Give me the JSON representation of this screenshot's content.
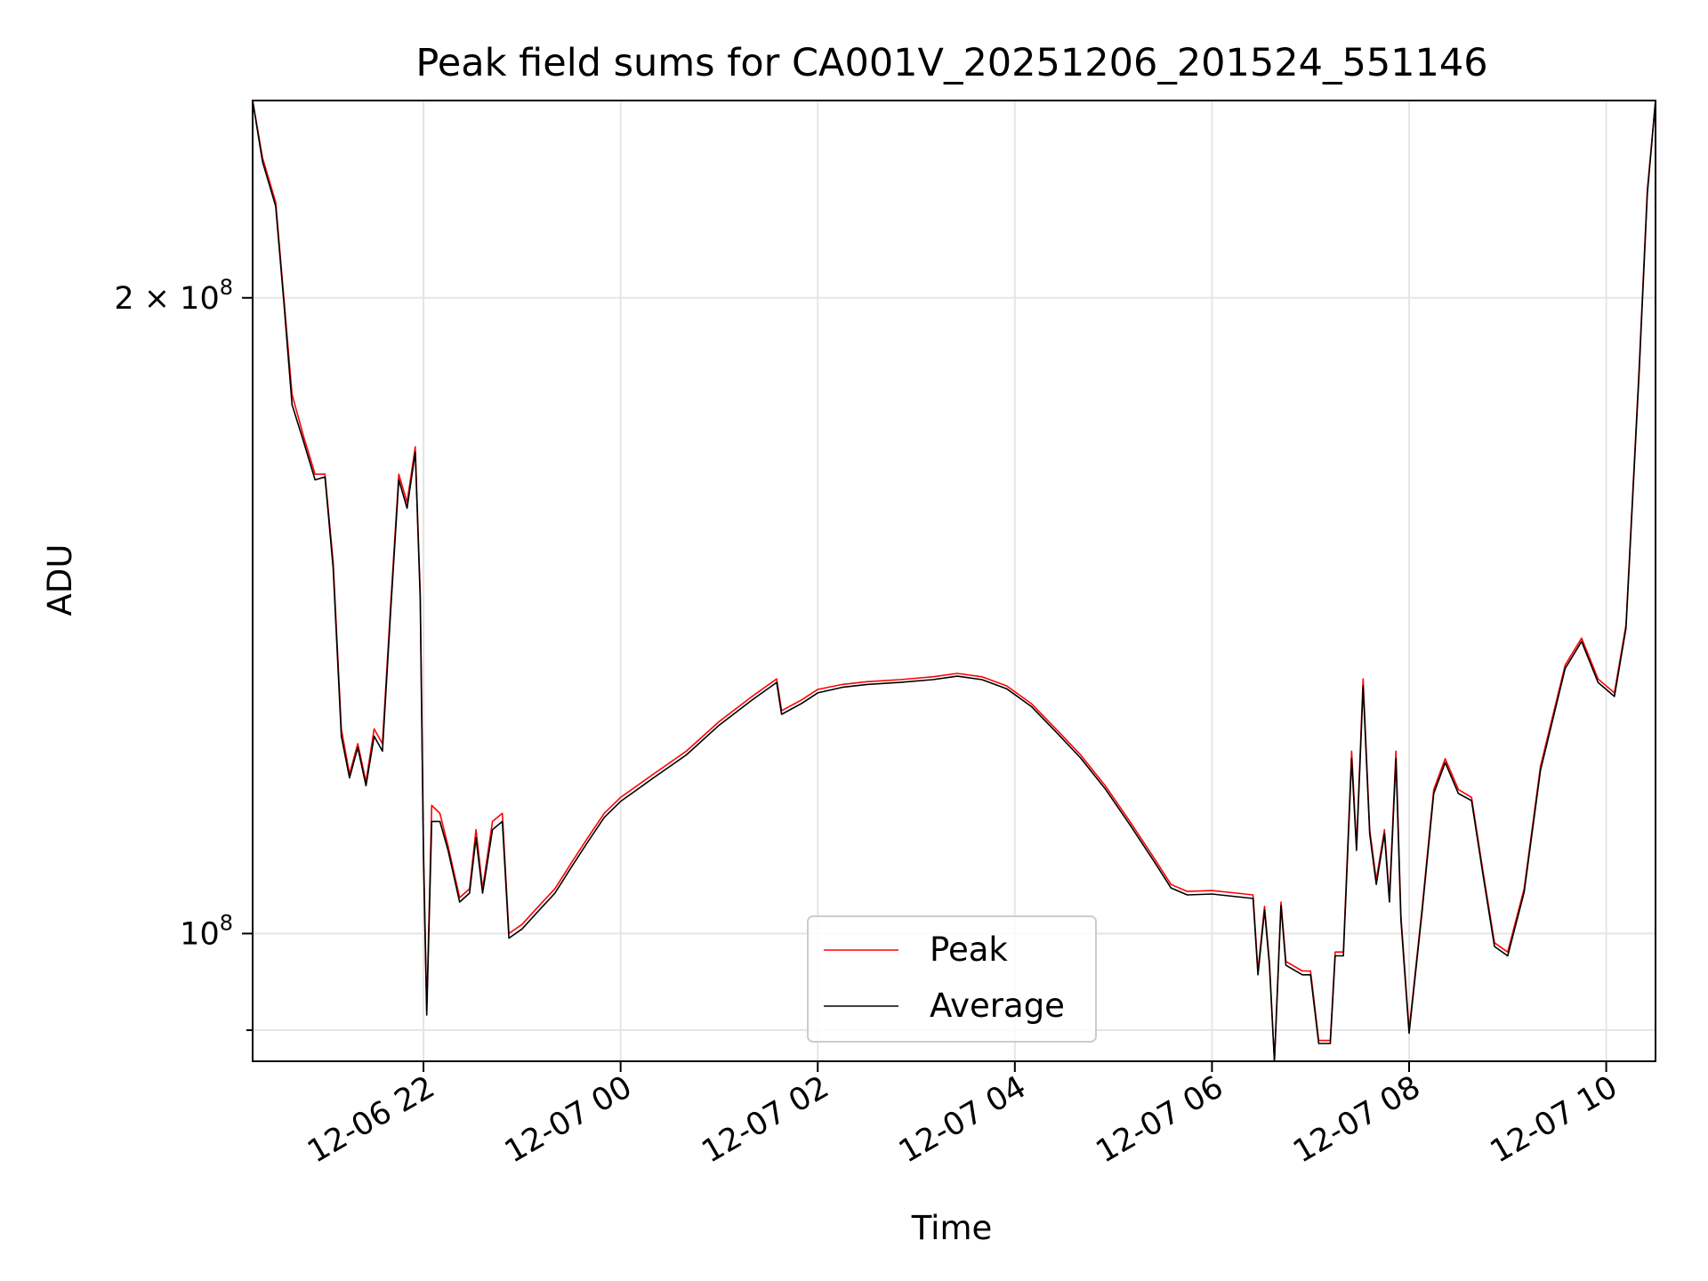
{
  "chart_data": {
    "type": "line",
    "title": "Peak field sums for CA001V_20251206_201524_551146",
    "xlabel": "Time",
    "ylabel": "ADU",
    "y_scale": "log",
    "ylim": [
      87000000,
      248000000
    ],
    "xlim": [
      "2025-12-06 20:16",
      "2025-12-07 10:30"
    ],
    "grid": true,
    "legend_position": "lower-center",
    "x_ticks": [
      {
        "value": "2025-12-06 22:00",
        "label": "12-06 22"
      },
      {
        "value": "2025-12-07 00:00",
        "label": "12-07 00"
      },
      {
        "value": "2025-12-07 02:00",
        "label": "12-07 02"
      },
      {
        "value": "2025-12-07 04:00",
        "label": "12-07 04"
      },
      {
        "value": "2025-12-07 06:00",
        "label": "12-07 06"
      },
      {
        "value": "2025-12-07 08:00",
        "label": "12-07 08"
      },
      {
        "value": "2025-12-07 10:00",
        "label": "12-07 10"
      }
    ],
    "y_ticks": [
      {
        "value": 100000000,
        "label": "10",
        "exp": "8"
      },
      {
        "value": 200000000,
        "label": "2 × 10",
        "exp": "8"
      }
    ],
    "y_minor_ticks": [
      90000000
    ],
    "series": [
      {
        "name": "Peak",
        "color": "#ff0000",
        "points": [
          [
            "2025-12-06 20:16",
            248000000
          ],
          [
            "2025-12-06 20:22",
            233000000
          ],
          [
            "2025-12-06 20:30",
            222000000
          ],
          [
            "2025-12-06 20:35",
            200000000
          ],
          [
            "2025-12-06 20:40",
            180000000
          ],
          [
            "2025-12-06 20:47",
            172000000
          ],
          [
            "2025-12-06 20:54",
            165000000
          ],
          [
            "2025-12-06 21:00",
            165000000
          ],
          [
            "2025-12-06 21:05",
            150000000
          ],
          [
            "2025-12-06 21:10",
            125000000
          ],
          [
            "2025-12-06 21:15",
            119000000
          ],
          [
            "2025-12-06 21:20",
            123000000
          ],
          [
            "2025-12-06 21:25",
            118000000
          ],
          [
            "2025-12-06 21:30",
            125000000
          ],
          [
            "2025-12-06 21:35",
            123000000
          ],
          [
            "2025-12-06 21:40",
            143000000
          ],
          [
            "2025-12-06 21:45",
            165000000
          ],
          [
            "2025-12-06 21:50",
            160000000
          ],
          [
            "2025-12-06 21:55",
            170000000
          ],
          [
            "2025-12-06 21:58",
            145000000
          ],
          [
            "2025-12-06 22:00",
            110000000
          ],
          [
            "2025-12-06 22:02",
            92000000
          ],
          [
            "2025-12-06 22:05",
            115000000
          ],
          [
            "2025-12-06 22:10",
            114000000
          ],
          [
            "2025-12-06 22:15",
            110000000
          ],
          [
            "2025-12-06 22:22",
            104000000
          ],
          [
            "2025-12-06 22:28",
            105000000
          ],
          [
            "2025-12-06 22:32",
            112000000
          ],
          [
            "2025-12-06 22:36",
            105000000
          ],
          [
            "2025-12-06 22:42",
            113000000
          ],
          [
            "2025-12-06 22:48",
            114000000
          ],
          [
            "2025-12-06 22:52",
            100000000
          ],
          [
            "2025-12-06 23:00",
            101000000
          ],
          [
            "2025-12-06 23:10",
            103000000
          ],
          [
            "2025-12-06 23:20",
            105000000
          ],
          [
            "2025-12-06 23:30",
            108000000
          ],
          [
            "2025-12-06 23:40",
            111000000
          ],
          [
            "2025-12-06 23:50",
            114000000
          ],
          [
            "2025-12-07 00:00",
            116000000
          ],
          [
            "2025-12-07 00:20",
            119000000
          ],
          [
            "2025-12-07 00:40",
            122000000
          ],
          [
            "2025-12-07 01:00",
            126000000
          ],
          [
            "2025-12-07 01:20",
            129500000
          ],
          [
            "2025-12-07 01:35",
            132000000
          ],
          [
            "2025-12-07 01:38",
            127500000
          ],
          [
            "2025-12-07 01:50",
            129000000
          ],
          [
            "2025-12-07 02:00",
            130500000
          ],
          [
            "2025-12-07 02:15",
            131200000
          ],
          [
            "2025-12-07 02:30",
            131600000
          ],
          [
            "2025-12-07 02:50",
            131900000
          ],
          [
            "2025-12-07 03:10",
            132300000
          ],
          [
            "2025-12-07 03:25",
            132800000
          ],
          [
            "2025-12-07 03:40",
            132300000
          ],
          [
            "2025-12-07 03:55",
            131000000
          ],
          [
            "2025-12-07 04:10",
            128500000
          ],
          [
            "2025-12-07 04:25",
            125000000
          ],
          [
            "2025-12-07 04:40",
            121500000
          ],
          [
            "2025-12-07 04:55",
            117500000
          ],
          [
            "2025-12-07 05:10",
            113000000
          ],
          [
            "2025-12-07 05:25",
            108500000
          ],
          [
            "2025-12-07 05:35",
            105500000
          ],
          [
            "2025-12-07 05:45",
            104700000
          ],
          [
            "2025-12-07 06:00",
            104800000
          ],
          [
            "2025-12-07 06:15",
            104500000
          ],
          [
            "2025-12-07 06:25",
            104300000
          ],
          [
            "2025-12-07 06:28",
            96000000
          ],
          [
            "2025-12-07 06:32",
            103000000
          ],
          [
            "2025-12-07 06:35",
            97000000
          ],
          [
            "2025-12-07 06:38",
            87000000
          ],
          [
            "2025-12-07 06:42",
            103500000
          ],
          [
            "2025-12-07 06:45",
            97000000
          ],
          [
            "2025-12-07 06:55",
            96000000
          ],
          [
            "2025-12-07 07:00",
            96000000
          ],
          [
            "2025-12-07 07:05",
            89000000
          ],
          [
            "2025-12-07 07:12",
            89000000
          ],
          [
            "2025-12-07 07:15",
            98000000
          ],
          [
            "2025-12-07 07:20",
            98000000
          ],
          [
            "2025-12-07 07:25",
            122000000
          ],
          [
            "2025-12-07 07:28",
            110000000
          ],
          [
            "2025-12-07 07:32",
            132000000
          ],
          [
            "2025-12-07 07:36",
            112000000
          ],
          [
            "2025-12-07 07:40",
            106000000
          ],
          [
            "2025-12-07 07:45",
            112000000
          ],
          [
            "2025-12-07 07:48",
            104000000
          ],
          [
            "2025-12-07 07:52",
            122000000
          ],
          [
            "2025-12-07 07:55",
            102000000
          ],
          [
            "2025-12-07 08:00",
            90000000
          ],
          [
            "2025-12-07 08:08",
            103000000
          ],
          [
            "2025-12-07 08:15",
            117000000
          ],
          [
            "2025-12-07 08:22",
            121000000
          ],
          [
            "2025-12-07 08:30",
            117000000
          ],
          [
            "2025-12-07 08:38",
            116000000
          ],
          [
            "2025-12-07 08:45",
            107000000
          ],
          [
            "2025-12-07 08:52",
            99000000
          ],
          [
            "2025-12-07 09:00",
            98000000
          ],
          [
            "2025-12-07 09:10",
            105000000
          ],
          [
            "2025-12-07 09:20",
            120000000
          ],
          [
            "2025-12-07 09:35",
            134000000
          ],
          [
            "2025-12-07 09:45",
            138000000
          ],
          [
            "2025-12-07 09:55",
            132000000
          ],
          [
            "2025-12-07 10:05",
            130000000
          ],
          [
            "2025-12-07 10:12",
            140000000
          ],
          [
            "2025-12-07 10:20",
            185000000
          ],
          [
            "2025-12-07 10:25",
            225000000
          ],
          [
            "2025-12-07 10:30",
            248000000
          ]
        ]
      },
      {
        "name": "Average",
        "color": "#000000",
        "points": [
          [
            "2025-12-06 20:16",
            248000000
          ],
          [
            "2025-12-06 20:22",
            232000000
          ],
          [
            "2025-12-06 20:30",
            221000000
          ],
          [
            "2025-12-06 20:35",
            199000000
          ],
          [
            "2025-12-06 20:40",
            178000000
          ],
          [
            "2025-12-06 20:47",
            171000000
          ],
          [
            "2025-12-06 20:54",
            164000000
          ],
          [
            "2025-12-06 21:00",
            164500000
          ],
          [
            "2025-12-06 21:05",
            149000000
          ],
          [
            "2025-12-06 21:10",
            124000000
          ],
          [
            "2025-12-06 21:15",
            118500000
          ],
          [
            "2025-12-06 21:20",
            122500000
          ],
          [
            "2025-12-06 21:25",
            117500000
          ],
          [
            "2025-12-06 21:30",
            124000000
          ],
          [
            "2025-12-06 21:35",
            122000000
          ],
          [
            "2025-12-06 21:40",
            142000000
          ],
          [
            "2025-12-06 21:45",
            164000000
          ],
          [
            "2025-12-06 21:50",
            159000000
          ],
          [
            "2025-12-06 21:55",
            169000000
          ],
          [
            "2025-12-06 21:58",
            144000000
          ],
          [
            "2025-12-06 22:00",
            109000000
          ],
          [
            "2025-12-06 22:02",
            91500000
          ],
          [
            "2025-12-06 22:05",
            113000000
          ],
          [
            "2025-12-06 22:10",
            113000000
          ],
          [
            "2025-12-06 22:15",
            109500000
          ],
          [
            "2025-12-06 22:22",
            103500000
          ],
          [
            "2025-12-06 22:28",
            104500000
          ],
          [
            "2025-12-06 22:32",
            111000000
          ],
          [
            "2025-12-06 22:36",
            104500000
          ],
          [
            "2025-12-06 22:42",
            112000000
          ],
          [
            "2025-12-06 22:48",
            113000000
          ],
          [
            "2025-12-06 22:52",
            99500000
          ],
          [
            "2025-12-06 23:00",
            100500000
          ],
          [
            "2025-12-06 23:10",
            102500000
          ],
          [
            "2025-12-06 23:20",
            104500000
          ],
          [
            "2025-12-06 23:30",
            107500000
          ],
          [
            "2025-12-06 23:40",
            110500000
          ],
          [
            "2025-12-06 23:50",
            113500000
          ],
          [
            "2025-12-07 00:00",
            115500000
          ],
          [
            "2025-12-07 00:20",
            118500000
          ],
          [
            "2025-12-07 00:40",
            121500000
          ],
          [
            "2025-12-07 01:00",
            125500000
          ],
          [
            "2025-12-07 01:20",
            129000000
          ],
          [
            "2025-12-07 01:35",
            131500000
          ],
          [
            "2025-12-07 01:38",
            127000000
          ],
          [
            "2025-12-07 01:50",
            128500000
          ],
          [
            "2025-12-07 02:00",
            130000000
          ],
          [
            "2025-12-07 02:15",
            130800000
          ],
          [
            "2025-12-07 02:30",
            131200000
          ],
          [
            "2025-12-07 02:50",
            131500000
          ],
          [
            "2025-12-07 03:10",
            131900000
          ],
          [
            "2025-12-07 03:25",
            132400000
          ],
          [
            "2025-12-07 03:40",
            131900000
          ],
          [
            "2025-12-07 03:55",
            130600000
          ],
          [
            "2025-12-07 04:10",
            128100000
          ],
          [
            "2025-12-07 04:25",
            124600000
          ],
          [
            "2025-12-07 04:40",
            121100000
          ],
          [
            "2025-12-07 04:55",
            117100000
          ],
          [
            "2025-12-07 05:10",
            112600000
          ],
          [
            "2025-12-07 05:25",
            108100000
          ],
          [
            "2025-12-07 05:35",
            105100000
          ],
          [
            "2025-12-07 05:45",
            104300000
          ],
          [
            "2025-12-07 06:00",
            104400000
          ],
          [
            "2025-12-07 06:15",
            104100000
          ],
          [
            "2025-12-07 06:25",
            103900000
          ],
          [
            "2025-12-07 06:28",
            95600000
          ],
          [
            "2025-12-07 06:32",
            102600000
          ],
          [
            "2025-12-07 06:35",
            96600000
          ],
          [
            "2025-12-07 06:38",
            87000000
          ],
          [
            "2025-12-07 06:42",
            103100000
          ],
          [
            "2025-12-07 06:45",
            96600000
          ],
          [
            "2025-12-07 06:55",
            95600000
          ],
          [
            "2025-12-07 07:00",
            95600000
          ],
          [
            "2025-12-07 07:05",
            88700000
          ],
          [
            "2025-12-07 07:12",
            88700000
          ],
          [
            "2025-12-07 07:15",
            97600000
          ],
          [
            "2025-12-07 07:20",
            97600000
          ],
          [
            "2025-12-07 07:25",
            121000000
          ],
          [
            "2025-12-07 07:28",
            109500000
          ],
          [
            "2025-12-07 07:32",
            131000000
          ],
          [
            "2025-12-07 07:36",
            111500000
          ],
          [
            "2025-12-07 07:40",
            105500000
          ],
          [
            "2025-12-07 07:45",
            111500000
          ],
          [
            "2025-12-07 07:48",
            103500000
          ],
          [
            "2025-12-07 07:52",
            121000000
          ],
          [
            "2025-12-07 07:55",
            101500000
          ],
          [
            "2025-12-07 08:00",
            89700000
          ],
          [
            "2025-12-07 08:08",
            102600000
          ],
          [
            "2025-12-07 08:15",
            116500000
          ],
          [
            "2025-12-07 08:22",
            120500000
          ],
          [
            "2025-12-07 08:30",
            116500000
          ],
          [
            "2025-12-07 08:38",
            115600000
          ],
          [
            "2025-12-07 08:45",
            106600000
          ],
          [
            "2025-12-07 08:52",
            98600000
          ],
          [
            "2025-12-07 09:00",
            97600000
          ],
          [
            "2025-12-07 09:10",
            104600000
          ],
          [
            "2025-12-07 09:20",
            119500000
          ],
          [
            "2025-12-07 09:35",
            133500000
          ],
          [
            "2025-12-07 09:45",
            137500000
          ],
          [
            "2025-12-07 09:55",
            131500000
          ],
          [
            "2025-12-07 10:05",
            129500000
          ],
          [
            "2025-12-07 10:12",
            139500000
          ],
          [
            "2025-12-07 10:20",
            184000000
          ],
          [
            "2025-12-07 10:25",
            224000000
          ],
          [
            "2025-12-07 10:30",
            248000000
          ]
        ]
      }
    ]
  }
}
